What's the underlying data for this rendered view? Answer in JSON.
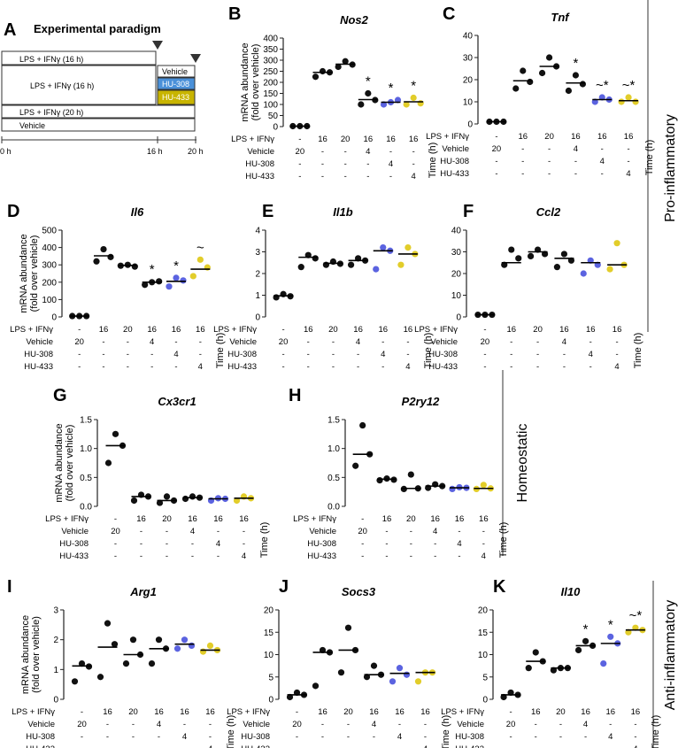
{
  "colors": {
    "vehicle": "#111111",
    "hu308": "#5b63e0",
    "hu433": "#e2cd2a",
    "axis": "#222222"
  },
  "row_labels": {
    "top": "Pro-inflammatory",
    "middle": "Homeostatic",
    "bottom": "Anti-inflammatory"
  },
  "paradigm": {
    "letter": "A",
    "title": "Experimental paradigm",
    "bars": [
      "LPS + IFNγ (16 h)",
      "LPS + IFNγ (16 h)",
      "LPS + IFNγ (20 h)",
      "Vehicle"
    ],
    "treatments": [
      "Vehicle",
      "HU-308",
      "HU-433"
    ],
    "ticks": [
      "0 h",
      "16 h",
      "20 h"
    ]
  },
  "table": {
    "row_labels": [
      "LPS + IFNγ",
      "Vehicle",
      "HU-308",
      "HU-433"
    ],
    "cols": [
      [
        "-",
        "20",
        "-",
        "-"
      ],
      [
        "16",
        "-",
        "-",
        "-"
      ],
      [
        "20",
        "-",
        "-",
        "-"
      ],
      [
        "16",
        "4",
        "-",
        "-"
      ],
      [
        "16",
        "-",
        "4",
        "-"
      ],
      [
        "16",
        "-",
        "-",
        "4"
      ]
    ],
    "time_label": "Time (h)"
  },
  "ylabel_lines": [
    "mRNA abundance",
    "(fold over vehicle)"
  ],
  "chart_data": [
    {
      "letter": "B",
      "gene": "Nos2",
      "type": "scatter",
      "ylim": [
        0,
        400
      ],
      "ticks": [
        0,
        50,
        100,
        150,
        200,
        250,
        300,
        350,
        400
      ],
      "show_ylabel": true,
      "points": [
        [
          2,
          2,
          2
        ],
        [
          225,
          250,
          245
        ],
        [
          270,
          295,
          280
        ],
        [
          100,
          150,
          120
        ],
        [
          100,
          110,
          120
        ],
        [
          100,
          130,
          105
        ]
      ],
      "medians": [
        2,
        245,
        282,
        122,
        110,
        112
      ],
      "annot": [
        "",
        "",
        "",
        "*",
        "*",
        "*"
      ]
    },
    {
      "letter": "C",
      "gene": "Tnf",
      "type": "scatter",
      "ylim": [
        0,
        40
      ],
      "ticks": [
        0,
        10,
        20,
        30,
        40
      ],
      "show_ylabel": false,
      "points": [
        [
          1,
          1,
          1
        ],
        [
          16,
          24,
          19
        ],
        [
          23,
          30,
          26
        ],
        [
          15,
          22,
          18
        ],
        [
          10,
          12,
          11
        ],
        [
          10,
          12,
          10
        ]
      ],
      "medians": [
        1,
        19.5,
        26,
        18.5,
        11,
        10.5
      ],
      "annot": [
        "",
        "",
        "",
        "*",
        "~*",
        "~*"
      ]
    },
    {
      "letter": "D",
      "gene": "Il6",
      "type": "scatter",
      "ylim": [
        0,
        500
      ],
      "ticks": [
        0,
        100,
        200,
        300,
        400,
        500
      ],
      "show_ylabel": true,
      "points": [
        [
          5,
          5,
          5
        ],
        [
          320,
          390,
          345
        ],
        [
          295,
          300,
          290
        ],
        [
          185,
          200,
          205
        ],
        [
          175,
          225,
          210
        ],
        [
          235,
          330,
          285
        ]
      ],
      "medians": [
        5,
        352,
        297,
        200,
        205,
        275
      ],
      "annot": [
        "",
        "",
        "",
        "*",
        "*",
        "~"
      ]
    },
    {
      "letter": "E",
      "gene": "Il1b",
      "type": "scatter",
      "ylim": [
        0,
        4
      ],
      "ticks": [
        0,
        1,
        2,
        3,
        4
      ],
      "show_ylabel": false,
      "points": [
        [
          0.9,
          1.05,
          0.95
        ],
        [
          2.3,
          2.85,
          2.7
        ],
        [
          2.4,
          2.55,
          2.45
        ],
        [
          2.4,
          2.7,
          2.6
        ],
        [
          2.2,
          3.2,
          3.05
        ],
        [
          2.4,
          3.2,
          2.9
        ]
      ],
      "medians": [
        0.97,
        2.75,
        2.47,
        2.6,
        3.05,
        2.9
      ],
      "annot": [
        "",
        "",
        "",
        "",
        "",
        ""
      ]
    },
    {
      "letter": "F",
      "gene": "Ccl2",
      "type": "scatter",
      "ylim": [
        0,
        40
      ],
      "ticks": [
        0,
        10,
        20,
        30,
        40
      ],
      "show_ylabel": false,
      "points": [
        [
          1,
          1,
          1
        ],
        [
          24,
          31,
          27
        ],
        [
          28,
          31,
          29
        ],
        [
          23,
          29,
          26
        ],
        [
          20,
          26,
          24
        ],
        [
          22,
          34,
          24
        ]
      ],
      "medians": [
        1,
        25,
        30,
        27,
        25,
        24
      ],
      "annot": [
        "",
        "",
        "",
        "",
        "",
        ""
      ]
    },
    {
      "letter": "G",
      "gene": "Cx3cr1",
      "type": "scatter",
      "ylim": [
        0,
        1.5
      ],
      "ticks": [
        0,
        0.5,
        1.0,
        1.5
      ],
      "show_ylabel": true,
      "points": [
        [
          0.75,
          1.25,
          1.05
        ],
        [
          0.1,
          0.2,
          0.17
        ],
        [
          0.06,
          0.17,
          0.1
        ],
        [
          0.13,
          0.17,
          0.15
        ],
        [
          0.1,
          0.14,
          0.13
        ],
        [
          0.1,
          0.17,
          0.14
        ]
      ],
      "medians": [
        1.05,
        0.17,
        0.1,
        0.15,
        0.13,
        0.14
      ],
      "annot": [
        "",
        "",
        "",
        "",
        "",
        ""
      ]
    },
    {
      "letter": "H",
      "gene": "P2ry12",
      "type": "scatter",
      "ylim": [
        0,
        1.5
      ],
      "ticks": [
        0,
        0.5,
        1.0,
        1.5
      ],
      "show_ylabel": false,
      "points": [
        [
          0.7,
          1.4,
          0.9
        ],
        [
          0.45,
          0.48,
          0.46
        ],
        [
          0.3,
          0.55,
          0.31
        ],
        [
          0.32,
          0.38,
          0.35
        ],
        [
          0.3,
          0.33,
          0.32
        ],
        [
          0.3,
          0.37,
          0.31
        ]
      ],
      "medians": [
        0.9,
        0.47,
        0.31,
        0.35,
        0.32,
        0.31
      ],
      "annot": [
        "",
        "",
        "",
        "",
        "",
        ""
      ]
    },
    {
      "letter": "I",
      "gene": "Arg1",
      "type": "scatter",
      "ylim": [
        0,
        3
      ],
      "ticks": [
        0,
        1,
        2,
        3
      ],
      "show_ylabel": true,
      "points": [
        [
          0.6,
          1.2,
          1.1
        ],
        [
          0.75,
          2.55,
          1.85
        ],
        [
          1.2,
          2.0,
          1.5
        ],
        [
          1.2,
          2.0,
          1.7
        ],
        [
          1.7,
          2.0,
          1.8
        ],
        [
          1.6,
          1.8,
          1.65
        ]
      ],
      "medians": [
        1.12,
        1.75,
        1.5,
        1.7,
        1.85,
        1.65
      ],
      "annot": [
        "",
        "",
        "",
        "",
        "",
        ""
      ]
    },
    {
      "letter": "J",
      "gene": "Socs3",
      "type": "scatter",
      "ylim": [
        0,
        20
      ],
      "ticks": [
        0,
        5,
        10,
        15,
        20
      ],
      "show_ylabel": false,
      "points": [
        [
          0.5,
          1.5,
          1
        ],
        [
          3,
          11,
          10.5
        ],
        [
          6,
          16,
          11
        ],
        [
          5,
          7.5,
          5.5
        ],
        [
          4,
          7,
          5.5
        ],
        [
          4,
          6,
          6
        ]
      ],
      "medians": [
        1,
        10.5,
        11,
        5.5,
        5.8,
        6
      ],
      "annot": [
        "",
        "",
        "",
        "",
        "",
        ""
      ]
    },
    {
      "letter": "K",
      "gene": "Il10",
      "type": "scatter",
      "ylim": [
        0,
        20
      ],
      "ticks": [
        0,
        5,
        10,
        15,
        20
      ],
      "show_ylabel": false,
      "points": [
        [
          0.5,
          1.5,
          1
        ],
        [
          7,
          10.5,
          8.5
        ],
        [
          6.5,
          7,
          7
        ],
        [
          11,
          13,
          12
        ],
        [
          8,
          14,
          12.5
        ],
        [
          15,
          16,
          15.5
        ]
      ],
      "medians": [
        1,
        8.5,
        7,
        12,
        12.5,
        15.5
      ],
      "annot": [
        "",
        "",
        "",
        "*",
        "*",
        "~*"
      ]
    }
  ]
}
